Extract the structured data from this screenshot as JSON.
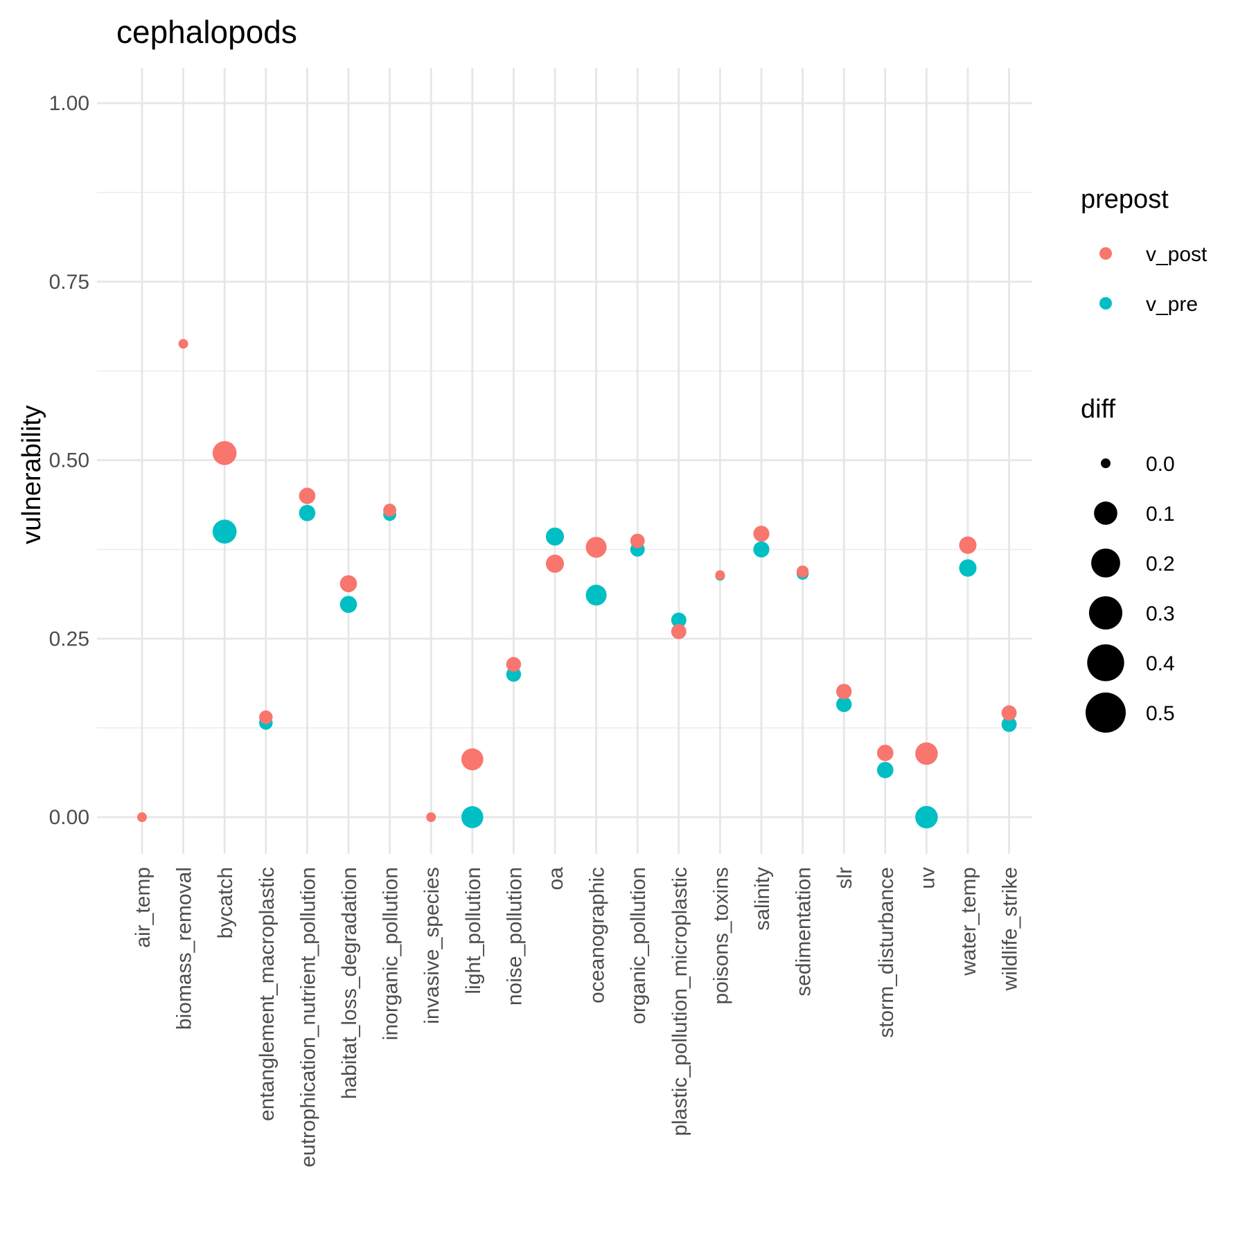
{
  "chart_data": {
    "type": "scatter",
    "title": "cephalopods",
    "xlabel": "",
    "ylabel": "vulnerability",
    "ylim": [
      -0.05,
      1.05
    ],
    "yticks": [
      "0.00",
      "0.25",
      "0.50",
      "0.75",
      "1.00"
    ],
    "grid": true,
    "categories": [
      "air_temp",
      "biomass_removal",
      "bycatch",
      "entanglement_macroplastic",
      "eutrophication_nutrient_pollution",
      "habitat_loss_degradation",
      "inorganic_pollution",
      "invasive_species",
      "light_pollution",
      "noise_pollution",
      "oa",
      "oceanographic",
      "organic_pollution",
      "plastic_pollution_microplastic",
      "poisons_toxins",
      "salinity",
      "sedimentation",
      "slr",
      "storm_disturbance",
      "uv",
      "water_temp",
      "wildlife_strike"
    ],
    "series": [
      {
        "name": "v_post",
        "color": "#F8766D",
        "values": [
          0.0,
          0.663,
          0.51,
          0.14,
          0.45,
          0.327,
          0.43,
          0.0,
          0.081,
          0.214,
          0.355,
          0.378,
          0.387,
          0.26,
          0.339,
          0.397,
          0.344,
          0.176,
          0.09,
          0.089,
          0.381,
          0.146
        ],
        "diff": [
          0.0,
          0.0,
          0.11,
          0.008,
          0.024,
          0.029,
          0.006,
          0.0,
          0.081,
          0.014,
          0.038,
          0.067,
          0.012,
          0.016,
          0.0,
          0.022,
          0.003,
          0.018,
          0.024,
          0.089,
          0.032,
          0.016
        ]
      },
      {
        "name": "v_pre",
        "color": "#00BFC4",
        "values": [
          null,
          null,
          0.4,
          0.132,
          0.426,
          0.298,
          0.424,
          null,
          0.0,
          0.2,
          0.393,
          0.311,
          0.375,
          0.276,
          0.338,
          0.375,
          0.341,
          0.158,
          0.066,
          0.0,
          0.349,
          0.13
        ],
        "diff": [
          null,
          null,
          0.11,
          0.008,
          0.024,
          0.029,
          0.006,
          null,
          0.081,
          0.014,
          0.038,
          0.067,
          0.012,
          0.016,
          0.0,
          0.022,
          0.003,
          0.018,
          0.024,
          0.089,
          0.032,
          0.016
        ]
      }
    ],
    "legend": {
      "placement": "right",
      "color_title": "prepost",
      "color_entries": [
        "v_post",
        "v_pre"
      ],
      "size_title": "diff",
      "size_entries": [
        "0.0",
        "0.1",
        "0.2",
        "0.3",
        "0.4",
        "0.5"
      ]
    }
  }
}
